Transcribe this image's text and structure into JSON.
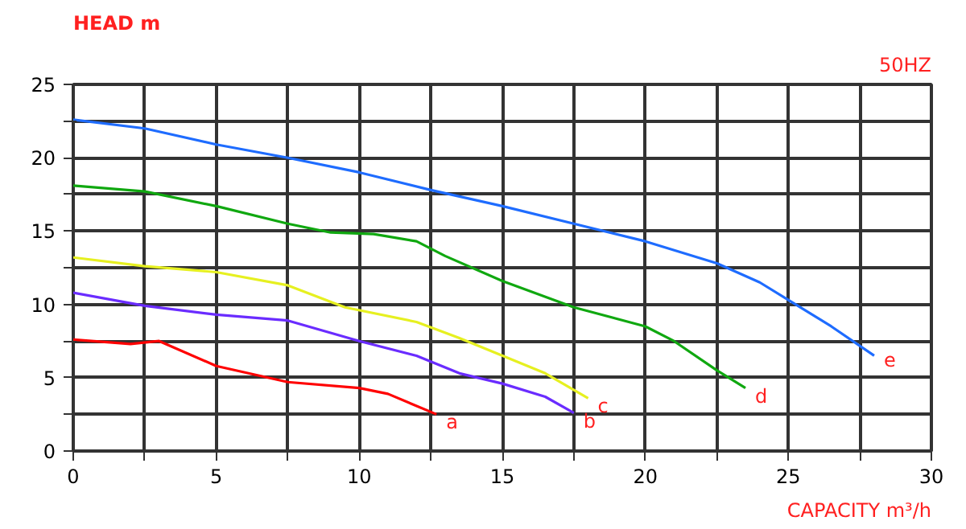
{
  "chart_data": {
    "type": "line",
    "title": "50HZ",
    "xlabel": "CAPACITY m³/h",
    "ylabel": "HEAD m",
    "xlim": [
      0,
      30
    ],
    "ylim": [
      0,
      25
    ],
    "xticks": [
      0,
      {
        "value": 2.5,
        "label": null
      },
      5,
      {
        "value": 7.5,
        "label": null
      },
      10,
      {
        "value": 12.5,
        "label": null
      },
      15,
      {
        "value": 17.5,
        "label": null
      },
      20,
      {
        "value": 22.5,
        "label": null
      },
      25,
      {
        "value": 27.5,
        "label": null
      },
      30
    ],
    "yticks": [
      0,
      {
        "value": 2.5,
        "label": null
      },
      5,
      {
        "value": 7.5,
        "label": null
      },
      10,
      {
        "value": 12.5,
        "label": null
      },
      15,
      {
        "value": 17.5,
        "label": null
      },
      20,
      {
        "value": 22.5,
        "label": null
      },
      25
    ],
    "grid": true,
    "legend": false,
    "line_style": "solid",
    "marker": "none",
    "series": [
      {
        "name": "a",
        "color": "#ff0000",
        "x": [
          0,
          2,
          3,
          5,
          7.5,
          10,
          11,
          12.7
        ],
        "values": [
          7.6,
          7.3,
          7.5,
          5.8,
          4.7,
          4.3,
          3.9,
          2.5
        ]
      },
      {
        "name": "b",
        "color": "#6a2cff",
        "x": [
          0,
          2.5,
          5,
          7.5,
          10,
          12,
          13.5,
          15,
          16.5,
          17.5
        ],
        "values": [
          10.8,
          9.9,
          9.3,
          8.9,
          7.5,
          6.5,
          5.3,
          4.6,
          3.7,
          2.6
        ]
      },
      {
        "name": "c",
        "color": "#e6f020",
        "x": [
          0,
          2.5,
          5,
          7.5,
          9.5,
          12,
          13.5,
          16.5,
          18
        ],
        "values": [
          13.2,
          12.6,
          12.2,
          11.3,
          9.8,
          8.8,
          7.7,
          5.3,
          3.6
        ]
      },
      {
        "name": "d",
        "color": "#10a810",
        "x": [
          0,
          2.5,
          5,
          7.5,
          9,
          10.5,
          12,
          13,
          15,
          17.5,
          20,
          21,
          22.5,
          23.5
        ],
        "values": [
          18.1,
          17.7,
          16.7,
          15.5,
          14.9,
          14.8,
          14.3,
          13.3,
          11.6,
          9.8,
          8.5,
          7.5,
          5.5,
          4.3
        ]
      },
      {
        "name": "e",
        "color": "#1e6cff",
        "x": [
          0,
          2.5,
          5,
          7.5,
          10,
          12.5,
          15,
          17.5,
          20,
          22.5,
          24,
          25,
          26.5,
          28
        ],
        "values": [
          22.6,
          22.0,
          20.9,
          20.0,
          19.0,
          17.8,
          16.7,
          15.5,
          14.3,
          12.8,
          11.5,
          10.3,
          8.5,
          6.5
        ]
      }
    ]
  }
}
